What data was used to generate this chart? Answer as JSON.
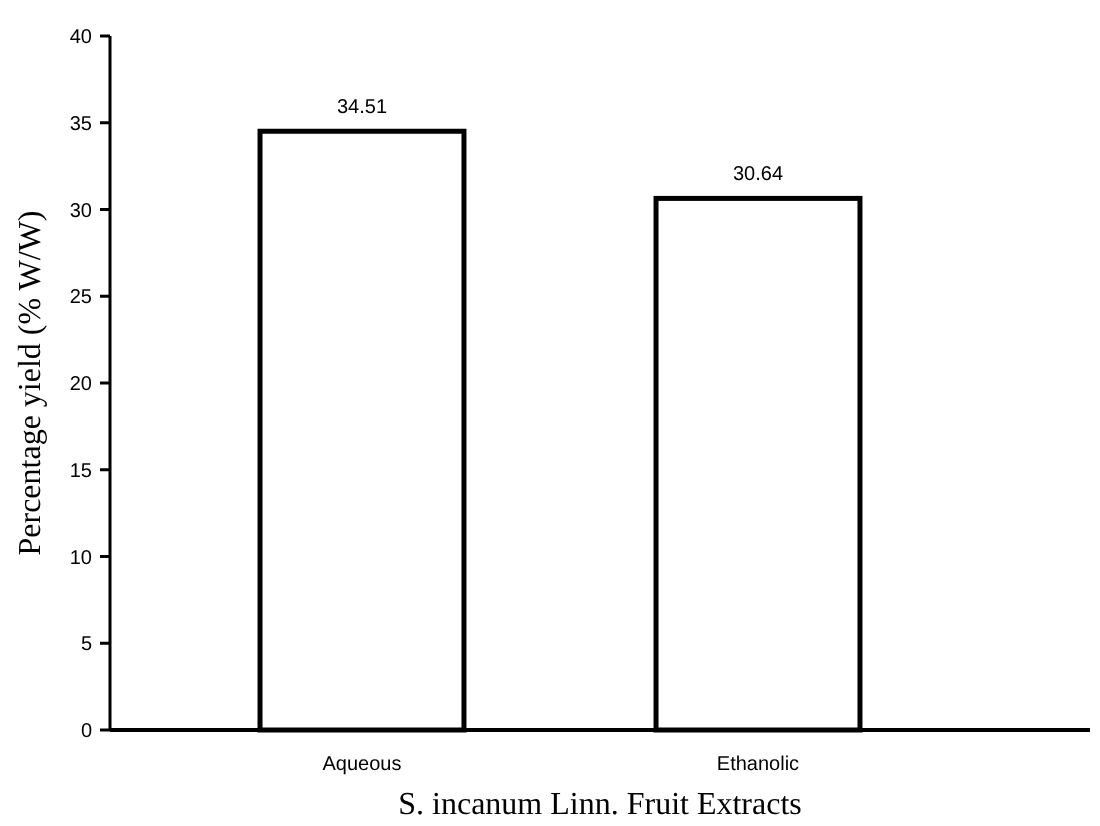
{
  "chart_data": {
    "type": "bar",
    "categories": [
      "Aqueous",
      "Ethanolic"
    ],
    "values": [
      34.51,
      30.64
    ],
    "color": "#ffffff",
    "data_labels": true,
    "xlabel": "S. incanum Linn. Fruit Extracts",
    "ylabel": "Percentage yield (% W/W)",
    "ylim": [
      0,
      40
    ],
    "yticks": [
      0,
      5,
      10,
      15,
      20,
      25,
      30,
      35,
      40
    ],
    "grid": false
  }
}
